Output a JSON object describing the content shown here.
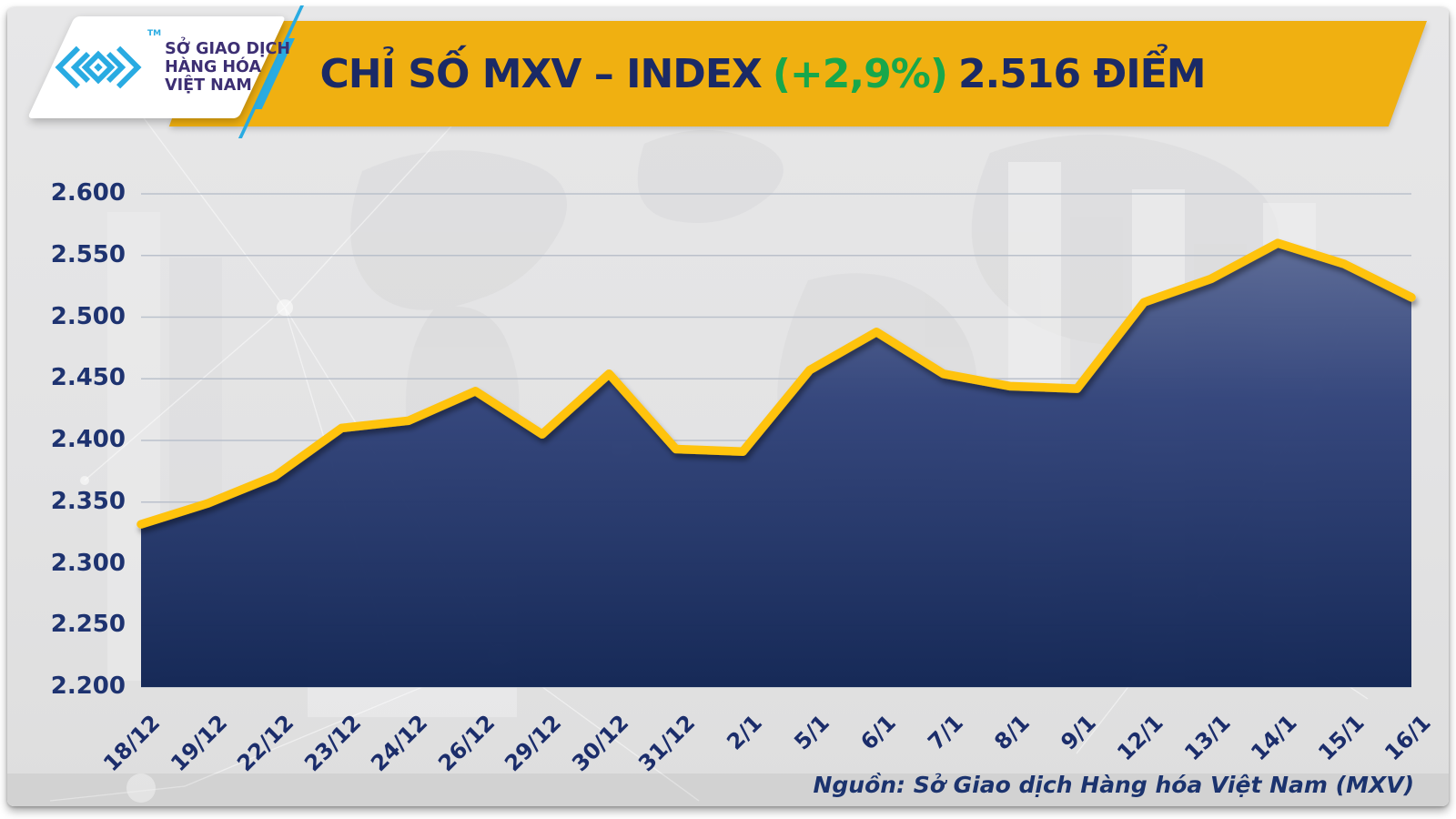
{
  "header": {
    "logo": {
      "lines": [
        "SỞ GIAO DỊCH",
        "HÀNG HÓA",
        "VIỆT NAM"
      ],
      "trademark": "TM",
      "mark_icon": "mxv-chevron-logo",
      "mark_color": "#29ABE2",
      "text_color": "#3D2F73"
    },
    "banner_color": "#F0B011",
    "title": {
      "prefix": "CHỈ SỐ MXV – INDEX",
      "change": "(+2,9%)",
      "suffix": "2.516 ĐIỂM",
      "text_color": "#1B2A66",
      "change_color": "#18A74B"
    }
  },
  "chart_data": {
    "type": "area",
    "title": "CHỈ SỐ MXV – INDEX (+2,9%) 2.516 ĐIỂM",
    "x": [
      "18/12",
      "19/12",
      "22/12",
      "23/12",
      "24/12",
      "26/12",
      "29/12",
      "30/12",
      "31/12",
      "2/1",
      "5/1",
      "6/1",
      "7/1",
      "8/1",
      "9/1",
      "12/1",
      "13/1",
      "14/1",
      "15/1",
      "16/1"
    ],
    "values": [
      2332,
      2349,
      2371,
      2410,
      2416,
      2440,
      2405,
      2454,
      2393,
      2391,
      2457,
      2488,
      2454,
      2444,
      2442,
      2512,
      2531,
      2560,
      2543,
      2516
    ],
    "last_value_label": "2.516",
    "change_label": "+2,9%",
    "ylim": [
      2200,
      2600
    ],
    "yticks": [
      {
        "v": 2200,
        "label": "2.200"
      },
      {
        "v": 2250,
        "label": "2.250"
      },
      {
        "v": 2300,
        "label": "2.300"
      },
      {
        "v": 2350,
        "label": "2.350"
      },
      {
        "v": 2400,
        "label": "2.400"
      },
      {
        "v": 2450,
        "label": "2.450"
      },
      {
        "v": 2500,
        "label": "2.500"
      },
      {
        "v": 2550,
        "label": "2.550"
      },
      {
        "v": 2600,
        "label": "2.600"
      }
    ],
    "grid": true,
    "legend": "none",
    "line_color": "#FFC30B",
    "fill_gradient_top": "#66749D",
    "fill_gradient_mid": "#31437A",
    "fill_gradient_bottom": "#102453",
    "grid_color": "#B6BDC9",
    "axis_label_color": "#1E3370"
  },
  "footer": {
    "source": "Nguồn: Sở Giao dịch Hàng hóa Việt Nam (MXV)"
  }
}
